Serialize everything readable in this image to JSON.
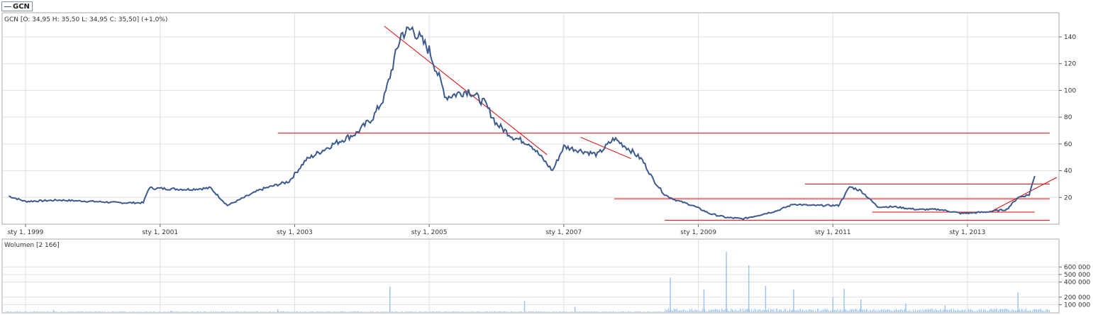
{
  "legend": {
    "label": "GCN",
    "color": "#3c5a8e"
  },
  "price_panel": {
    "info": "GCN [O: 34,95  H: 35,50  L: 34,95  C: 35,50] (+1,0%)"
  },
  "volume_panel": {
    "info": "Wolumen [2 166]"
  },
  "colors": {
    "price_line": "#3c5a8e",
    "trend_lines": "#e00000",
    "volume_bars": "#9ec4ef",
    "grid": "#e0e0e0",
    "border": "#aaaaaa"
  },
  "chart_data": [
    {
      "type": "line",
      "series": [
        {
          "name": "GCN",
          "x": [
            "1998-10",
            "1999-01",
            "1999-07",
            "2000-01",
            "2000-06",
            "2000-10",
            "2000-11",
            "2001-06",
            "2001-10",
            "2002-01",
            "2002-07",
            "2002-12",
            "2003-03",
            "2003-08",
            "2003-12",
            "2004-03",
            "2004-05",
            "2004-08",
            "2004-10",
            "2005-01",
            "2005-04",
            "2005-08",
            "2005-11",
            "2006-01",
            "2006-04",
            "2006-07",
            "2006-09",
            "2006-11",
            "2007-01",
            "2007-04",
            "2007-07",
            "2007-10",
            "2008-01",
            "2008-03",
            "2008-05",
            "2008-07",
            "2008-09",
            "2008-12",
            "2009-03",
            "2009-06",
            "2009-09",
            "2009-12",
            "2010-03",
            "2010-06",
            "2010-09",
            "2010-12",
            "2011-02",
            "2011-04",
            "2011-06",
            "2011-09",
            "2011-12",
            "2012-04",
            "2012-08",
            "2012-12",
            "2013-04",
            "2013-08",
            "2013-10",
            "2013-12",
            "2014-01"
          ],
          "y": [
            21,
            17,
            18,
            17,
            16,
            16,
            27,
            26,
            27,
            14,
            26,
            32,
            48,
            60,
            68,
            80,
            95,
            142,
            146,
            130,
            95,
            100,
            90,
            75,
            65,
            60,
            50,
            40,
            58,
            55,
            52,
            64,
            55,
            48,
            33,
            22,
            18,
            14,
            8,
            5,
            4,
            7,
            10,
            15,
            14,
            14,
            14,
            28,
            25,
            13,
            13,
            11,
            11,
            8,
            9,
            11,
            20,
            22,
            36
          ]
        }
      ],
      "ylim": [
        0,
        150
      ],
      "y_ticks": [
        "20",
        "40",
        "60",
        "80",
        "100",
        "120",
        "140"
      ],
      "x_ticks": [
        "sty 1, 1999",
        "sty 1, 2001",
        "sty 1, 2003",
        "sty 1, 2005",
        "sty 1, 2007",
        "sty 1, 2009",
        "sty 1, 2011",
        "sty 1, 2013"
      ],
      "grid": true,
      "annotations": [
        {
          "kind": "horizontal",
          "y": 68,
          "x_from": "2002-10",
          "x_to": "2014-06"
        },
        {
          "kind": "horizontal",
          "y": 19,
          "x_from": "2007-10",
          "x_to": "2014-06"
        },
        {
          "kind": "horizontal",
          "y": 30,
          "x_from": "2010-08",
          "x_to": "2014-06"
        },
        {
          "kind": "horizontal",
          "y": 3,
          "x_from": "2008-07",
          "x_to": "2014-06"
        },
        {
          "kind": "horizontal",
          "y": 9,
          "x_from": "2011-08",
          "x_to": "2014-01"
        },
        {
          "kind": "trend",
          "x1": "2004-05",
          "y1": 148,
          "x2": "2006-10",
          "y2": 52
        },
        {
          "kind": "trend",
          "x1": "2007-04",
          "y1": 65,
          "x2": "2008-01",
          "y2": 49
        },
        {
          "kind": "trend",
          "x1": "2013-05",
          "y1": 9,
          "x2": "2014-07",
          "y2": 35
        }
      ]
    },
    {
      "type": "bar",
      "series": [
        {
          "name": "Wolumen",
          "x": [
            "1999-06",
            "2001-03",
            "2002-10",
            "2004-06",
            "2006-06",
            "2007-03",
            "2008-08",
            "2009-02",
            "2009-06",
            "2009-10",
            "2010-01",
            "2010-06",
            "2011-01",
            "2011-03",
            "2011-06",
            "2012-02",
            "2012-09",
            "2013-10"
          ],
          "y": [
            30000,
            20000,
            40000,
            340000,
            150000,
            70000,
            460000,
            300000,
            800000,
            620000,
            350000,
            300000,
            200000,
            310000,
            170000,
            120000,
            90000,
            260000
          ]
        }
      ],
      "ylim": [
        0,
        800000
      ],
      "y_ticks": [
        "100 000",
        "200 000",
        "400 000",
        "500 000",
        "600 000"
      ],
      "grid": true
    }
  ]
}
